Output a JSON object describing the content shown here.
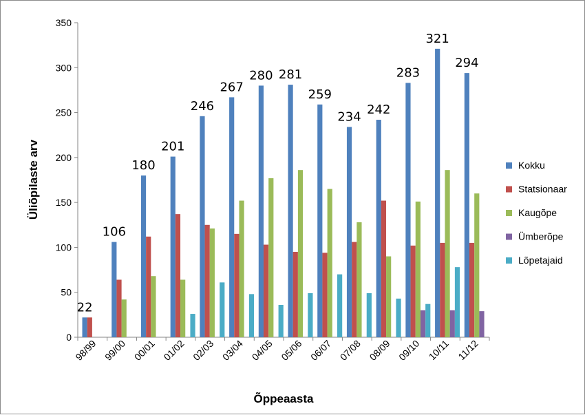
{
  "chart_data": {
    "type": "bar",
    "title": "",
    "xlabel": "Õppeaasta",
    "ylabel": "Üliõpilaste arv",
    "ylim": [
      0,
      350
    ],
    "yticks": [
      0,
      50,
      100,
      150,
      200,
      250,
      300,
      350
    ],
    "grid": false,
    "legend_position": "right",
    "categories": [
      "98/99",
      "99/00",
      "00/01",
      "01/02",
      "02/03",
      "03/04",
      "04/05",
      "05/06",
      "06/07",
      "07/08",
      "08/09",
      "09/10",
      "10/11",
      "11/12"
    ],
    "series": [
      {
        "name": "Kokku",
        "color": "#4F81BD",
        "values": [
          22,
          106,
          180,
          201,
          246,
          267,
          280,
          281,
          259,
          234,
          242,
          283,
          321,
          294
        ]
      },
      {
        "name": "Statsionaar",
        "color": "#C0504D",
        "values": [
          22,
          64,
          112,
          137,
          125,
          115,
          103,
          95,
          94,
          106,
          152,
          102,
          105,
          105
        ]
      },
      {
        "name": "Kaugõpe",
        "color": "#9BBB59",
        "values": [
          0,
          42,
          68,
          64,
          121,
          152,
          177,
          186,
          165,
          128,
          90,
          151,
          186,
          160
        ]
      },
      {
        "name": "Ümberõpe",
        "color": "#8064A2",
        "values": [
          0,
          0,
          0,
          0,
          0,
          0,
          0,
          0,
          0,
          0,
          0,
          30,
          30,
          29
        ]
      },
      {
        "name": "Lõpetajaid",
        "color": "#4BACC6",
        "values": [
          0,
          0,
          0,
          26,
          61,
          48,
          36,
          49,
          70,
          49,
          43,
          37,
          78,
          0
        ]
      }
    ],
    "data_labels_series": "Kokku",
    "data_labels": [
      22,
      106,
      180,
      201,
      246,
      267,
      280,
      281,
      259,
      234,
      242,
      283,
      321,
      294
    ]
  }
}
